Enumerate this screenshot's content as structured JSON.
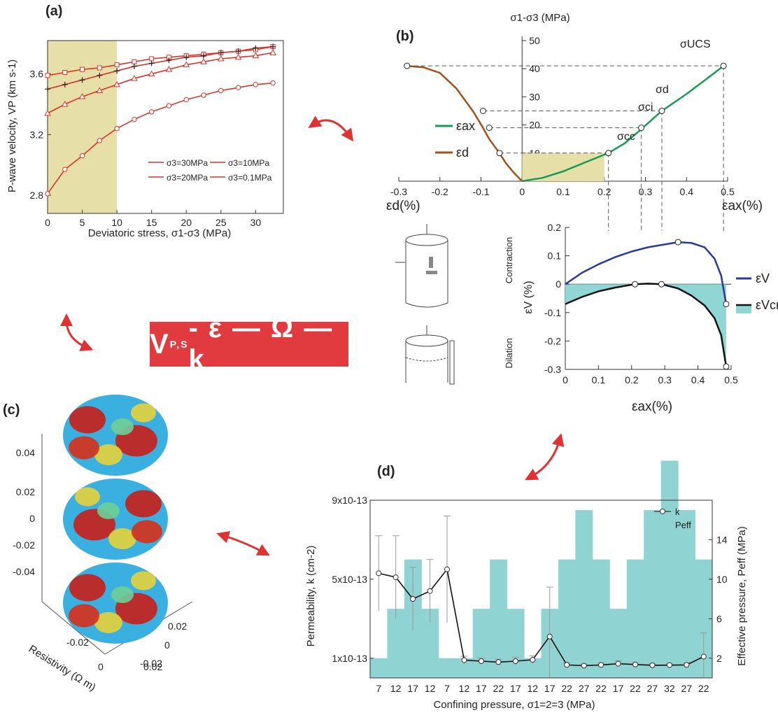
{
  "banner": {
    "v": "V",
    "sub": "P,S",
    "rest": " - ε — Ω — k"
  },
  "chart_data": [
    {
      "panel": "(a)",
      "type": "line",
      "xlabel": "Deviatoric stress, σ1-σ3 (MPa)",
      "ylabel": "P-wave velocity, VP (km s-1)",
      "xlim": [
        0,
        34
      ],
      "ylim": [
        2.68,
        3.82
      ],
      "xticks": [
        "0",
        "5",
        "10",
        "15",
        "20",
        "25",
        "30"
      ],
      "yticks": [
        "2.8",
        "3.2",
        "3.6"
      ],
      "shaded_region": [
        0,
        10
      ],
      "series": [
        {
          "name": "σ3=30MPa",
          "marker": "square",
          "x": [
            0,
            2.5,
            5,
            7.5,
            10,
            12.5,
            15,
            17.5,
            20,
            22.5,
            25,
            27.5,
            30,
            32.5
          ],
          "values": [
            3.59,
            3.61,
            3.63,
            3.64,
            3.66,
            3.68,
            3.7,
            3.71,
            3.72,
            3.73,
            3.74,
            3.75,
            3.76,
            3.78
          ]
        },
        {
          "name": "σ3=20MPa",
          "marker": "plus",
          "x": [
            0,
            2.5,
            5,
            7.5,
            10,
            12.5,
            15,
            17.5,
            20,
            22.5,
            25,
            27.5,
            30,
            32.5
          ],
          "values": [
            3.5,
            3.53,
            3.56,
            3.59,
            3.62,
            3.65,
            3.67,
            3.69,
            3.71,
            3.72,
            3.74,
            3.75,
            3.77,
            3.78
          ]
        },
        {
          "name": "σ3=10MPa",
          "marker": "triangle",
          "x": [
            0,
            2.5,
            5,
            7.5,
            10,
            12.5,
            15,
            17.5,
            20,
            22.5,
            25,
            27.5,
            30,
            32.5
          ],
          "values": [
            3.34,
            3.4,
            3.45,
            3.49,
            3.53,
            3.57,
            3.6,
            3.63,
            3.66,
            3.68,
            3.7,
            3.71,
            3.72,
            3.74
          ]
        },
        {
          "name": "σ3=0.1MPa",
          "marker": "circle",
          "x": [
            0,
            2.5,
            5,
            7.5,
            10,
            12.5,
            15,
            17.5,
            20,
            22.5,
            25,
            27.5,
            30,
            32.5
          ],
          "values": [
            2.81,
            2.97,
            3.06,
            3.16,
            3.24,
            3.3,
            3.35,
            3.39,
            3.43,
            3.46,
            3.49,
            3.51,
            3.53,
            3.54
          ]
        }
      ]
    },
    {
      "panel": "(b) upper",
      "type": "line",
      "title": "σ1-σ3 (MPa)",
      "xlabel_left": "εd(%)",
      "xlabel_right": "εax(%)",
      "xlim": [
        -0.3,
        0.5
      ],
      "ylim": [
        0,
        50
      ],
      "xticks": [
        "-0.3",
        "-0.2",
        "-0.1",
        "0",
        "0.1",
        "0.2",
        "0.3",
        "0.4",
        "0.5"
      ],
      "yticks": [
        "10",
        "20",
        "30",
        "40",
        "50"
      ],
      "legend": [
        "εax",
        "εd"
      ],
      "stress_labels": [
        "σUCS",
        "σd",
        "σci",
        "σcc"
      ],
      "series": [
        {
          "name": "εax",
          "color": "#179a55",
          "x": [
            0,
            0.05,
            0.1,
            0.15,
            0.21,
            0.25,
            0.29,
            0.34,
            0.4,
            0.45,
            0.49
          ],
          "values": [
            0,
            1.2,
            3.5,
            6.5,
            10,
            13.5,
            18.5,
            25,
            31,
            36.5,
            41
          ]
        },
        {
          "name": "εd",
          "color": "#a0521d",
          "x": [
            0,
            -0.02,
            -0.04,
            -0.055,
            -0.08,
            -0.095,
            -0.12,
            -0.16,
            -0.2,
            -0.24,
            -0.28
          ],
          "values": [
            0,
            3,
            6.5,
            10,
            15,
            19,
            25,
            33,
            38.5,
            40.5,
            41
          ]
        }
      ],
      "marked_points": [
        {
          "x": 0.21,
          "y": 10
        },
        {
          "x": 0.29,
          "y": 19
        },
        {
          "x": 0.34,
          "y": 25
        },
        {
          "x": 0.49,
          "y": 41
        },
        {
          "x": -0.055,
          "y": 10
        },
        {
          "x": -0.08,
          "y": 19
        },
        {
          "x": -0.095,
          "y": 25
        },
        {
          "x": -0.28,
          "y": 41
        }
      ]
    },
    {
      "panel": "(b) lower",
      "type": "line",
      "xlabel": "εax(%)",
      "ylabel": "εV (%)",
      "xlim": [
        0,
        0.5
      ],
      "ylim": [
        -0.3,
        0.2
      ],
      "xticks": [
        "0",
        "0.1",
        "0.2",
        "0.3",
        "0.4",
        "0.5"
      ],
      "yticks": [
        "0.2",
        "0.1",
        "0",
        "-0.1",
        "-0.2",
        "-0.3"
      ],
      "side_labels": [
        "Contraction",
        "Dilation"
      ],
      "legend": [
        "εV",
        "εVcr"
      ],
      "series": [
        {
          "name": "εV",
          "color": "#2b3a9a",
          "x": [
            0,
            0.05,
            0.1,
            0.15,
            0.2,
            0.25,
            0.3,
            0.34,
            0.38,
            0.42,
            0.45,
            0.47,
            0.485
          ],
          "values": [
            0,
            0.04,
            0.07,
            0.095,
            0.115,
            0.13,
            0.14,
            0.148,
            0.145,
            0.13,
            0.09,
            0.03,
            -0.07
          ]
        },
        {
          "name": "εVcr",
          "color": "#111111",
          "x": [
            0,
            0.05,
            0.1,
            0.15,
            0.21,
            0.25,
            0.29,
            0.34,
            0.38,
            0.42,
            0.45,
            0.47,
            0.485
          ],
          "values": [
            -0.07,
            -0.045,
            -0.025,
            -0.012,
            0,
            0.002,
            0,
            -0.015,
            -0.04,
            -0.075,
            -0.12,
            -0.18,
            -0.29
          ]
        }
      ],
      "marked_points": [
        {
          "x": 0.21,
          "y": 0
        },
        {
          "x": 0.29,
          "y": 0
        },
        {
          "x": 0.34,
          "y": 0.148
        },
        {
          "x": 0.485,
          "y": -0.07
        },
        {
          "x": 0.485,
          "y": -0.29
        }
      ]
    },
    {
      "panel": "(c)",
      "type": "heatmap",
      "zlabel": "Resistivity (Ω m)",
      "zticks": [
        "0.04",
        "0.02",
        "0",
        "-0.02",
        "-0.04"
      ],
      "xticks": [
        "-0.02",
        "0",
        "0.02"
      ],
      "yticks": [
        "0.02",
        "0",
        "-0.02"
      ]
    },
    {
      "panel": "(d)",
      "type": "bar",
      "xlabel": "Confining pressure, σ1=2=3 (MPa)",
      "ylabel": "Permeability, k (cm-2)",
      "y2label": "Effective pressure, Peff (MPa)",
      "categories": [
        "7",
        "12",
        "17",
        "12",
        "7",
        "12",
        "17",
        "22",
        "17",
        "12",
        "17",
        "22",
        "27",
        "22",
        "17",
        "22",
        "27",
        "32",
        "27",
        "22"
      ],
      "yticks": [
        "1x10-13",
        "5x10-13",
        "9x10-13"
      ],
      "y2ticks": [
        "2",
        "6",
        "10",
        "14"
      ],
      "legend": [
        "k",
        "Peff"
      ],
      "series": [
        {
          "name": "Peff",
          "values": [
            2,
            7,
            12,
            7,
            2,
            2,
            7,
            12,
            7,
            2,
            7,
            12,
            17,
            12,
            7,
            12,
            17,
            22,
            17,
            12
          ]
        },
        {
          "name": "k",
          "values": [
            5.3,
            5.1,
            4.0,
            4.4,
            5.5,
            0.9,
            0.85,
            0.8,
            0.85,
            0.92,
            2.1,
            0.66,
            0.62,
            0.66,
            0.72,
            0.68,
            0.64,
            0.65,
            0.66,
            1.08
          ],
          "err": [
            1.9,
            2.1,
            1.6,
            1.6,
            2.7,
            0.2,
            0.15,
            0.15,
            0.2,
            0.2,
            2.5,
            0.1,
            0.08,
            0.1,
            0.15,
            0.1,
            0.08,
            0.08,
            0.1,
            1.2
          ]
        }
      ]
    }
  ]
}
